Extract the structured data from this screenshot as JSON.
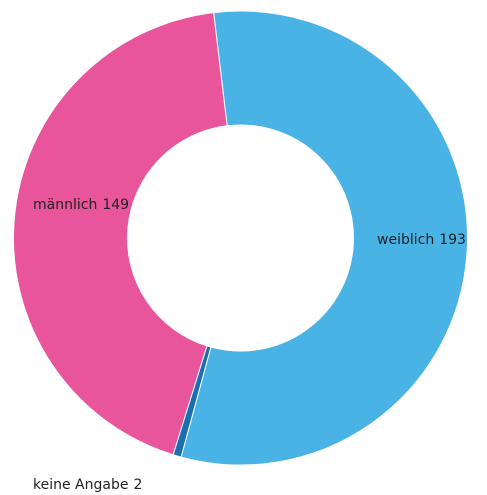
{
  "chart_data": {
    "type": "donut",
    "categories": [
      "weiblich",
      "keine Angabe",
      "männlich"
    ],
    "values": [
      193,
      2,
      149
    ],
    "colors": [
      "#4ab3e6",
      "#1a6fb0",
      "#e8559b"
    ]
  }
}
